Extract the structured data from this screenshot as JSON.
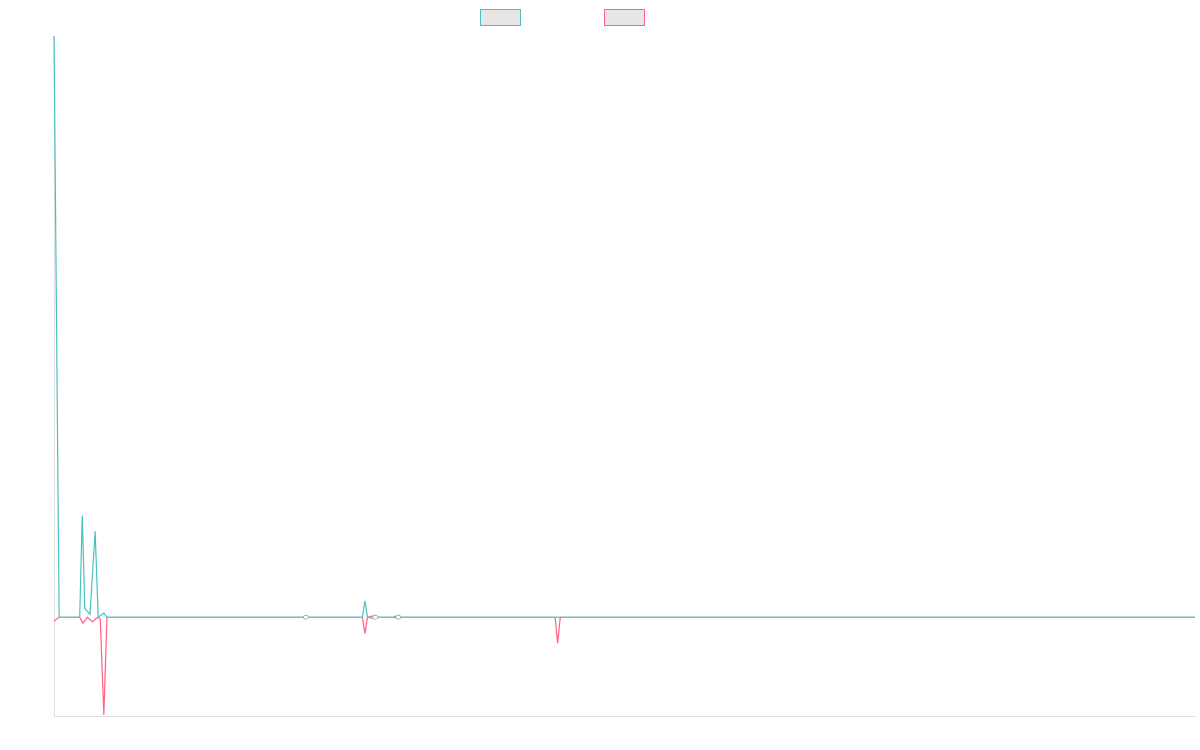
{
  "colors": {
    "series_a": "#4bc0c0",
    "series_b": "#ff6384",
    "legend_fill": "#e6e6e6",
    "axis": "#e0e0e0"
  },
  "chart_data": {
    "type": "line",
    "title": "",
    "xlabel": "",
    "ylabel": "",
    "x_range": [
      0,
      222
    ],
    "ylim": [
      -0.17,
      1.0
    ],
    "grid": false,
    "legend_position": "top-center",
    "series": [
      {
        "color_key": "series_a",
        "points": [
          [
            0,
            1.0
          ],
          [
            1,
            0.0
          ],
          [
            5,
            0.0
          ],
          [
            5.5,
            0.175
          ],
          [
            6,
            0.015
          ],
          [
            7,
            0.005
          ],
          [
            8,
            0.148
          ],
          [
            8.6,
            0.0
          ],
          [
            9.7,
            0.007
          ],
          [
            10.3,
            0.0
          ],
          [
            60,
            0.0
          ],
          [
            60.5,
            0.028
          ],
          [
            61,
            0.0
          ],
          [
            62,
            -0.002
          ],
          [
            63,
            0.0
          ],
          [
            66,
            0.0
          ],
          [
            66.5,
            0.002
          ],
          [
            67,
            0.0
          ],
          [
            222,
            0.0
          ]
        ]
      },
      {
        "color_key": "series_b",
        "points": [
          [
            0,
            -0.007
          ],
          [
            1,
            0.0
          ],
          [
            5,
            0.0
          ],
          [
            5.6,
            -0.01
          ],
          [
            6.5,
            0.0
          ],
          [
            7.5,
            -0.008
          ],
          [
            8.5,
            0.0
          ],
          [
            9,
            -0.003
          ],
          [
            9.7,
            -0.168
          ],
          [
            10.3,
            0.0
          ],
          [
            60,
            0.0
          ],
          [
            60.5,
            -0.028
          ],
          [
            61,
            0.0
          ],
          [
            62,
            0.002
          ],
          [
            63,
            0.0
          ],
          [
            66,
            0.0
          ],
          [
            66.5,
            -0.001
          ],
          [
            67,
            0.0
          ],
          [
            97.5,
            0.0
          ],
          [
            98,
            -0.045
          ],
          [
            98.5,
            0.0
          ],
          [
            222,
            0.0
          ]
        ]
      }
    ],
    "markers": [
      {
        "x": 49,
        "y": 0.0
      },
      {
        "x": 62.5,
        "y": 0.0
      },
      {
        "x": 67,
        "y": 0.0
      }
    ]
  }
}
